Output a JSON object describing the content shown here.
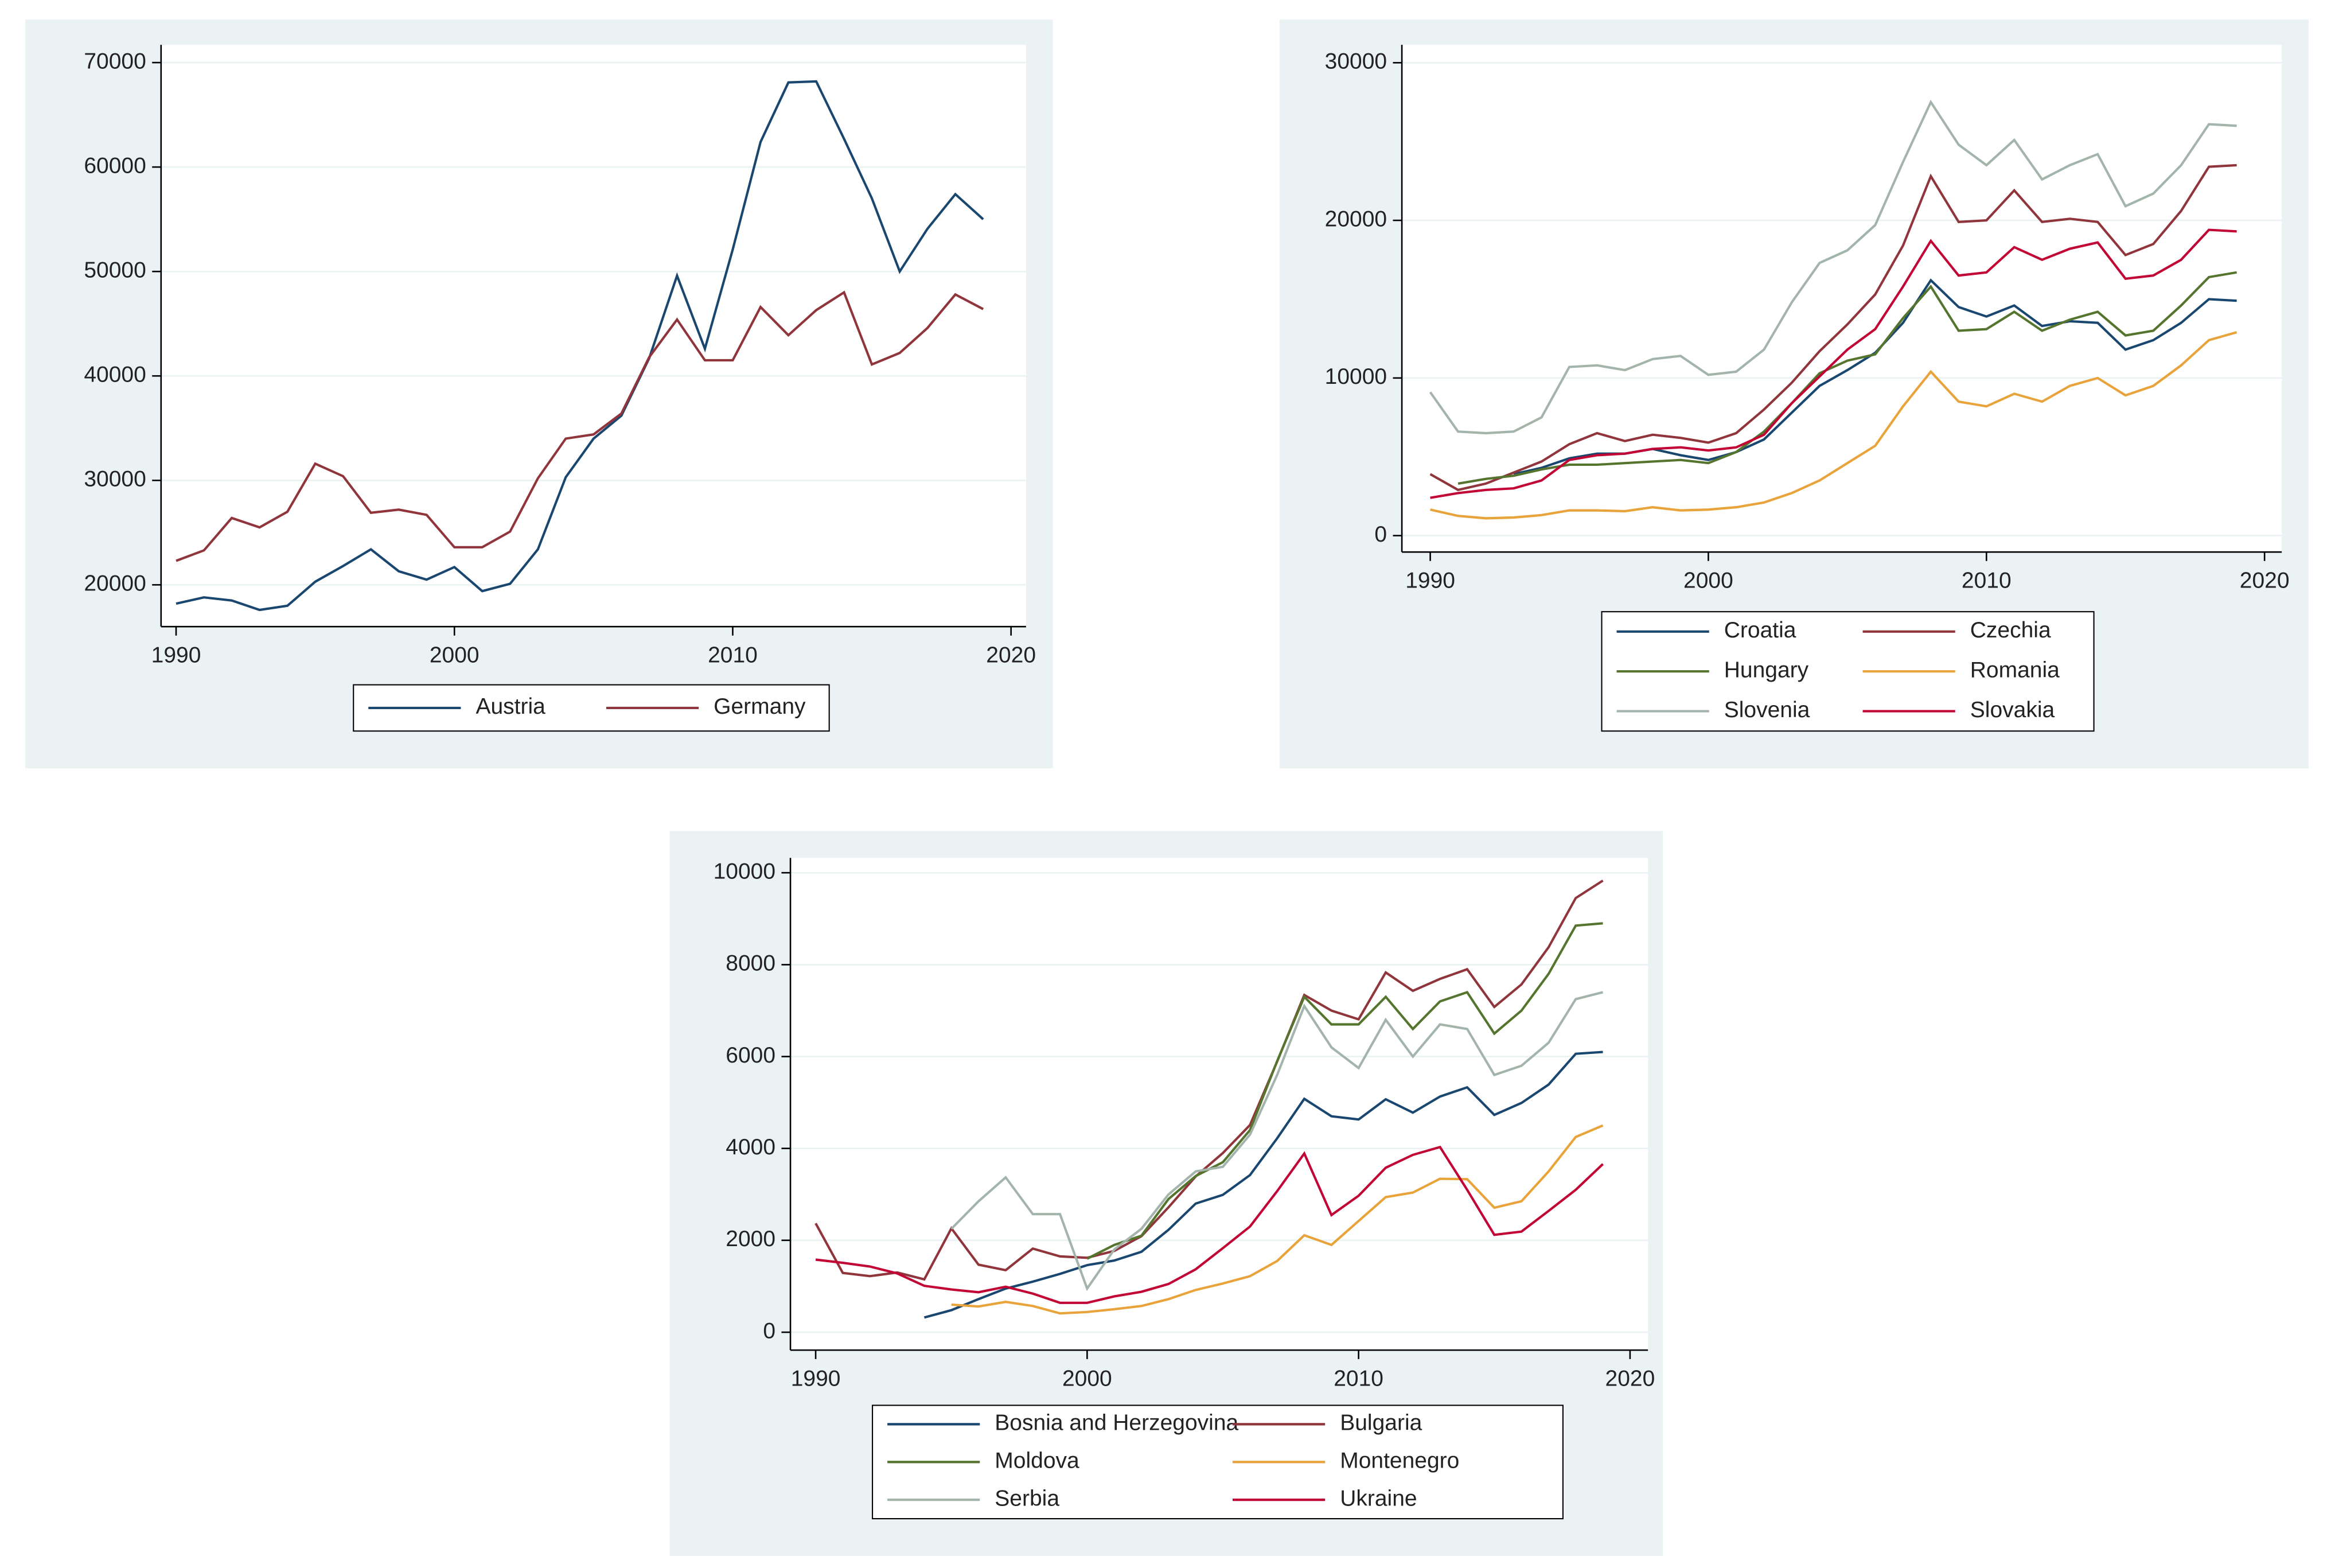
{
  "chart_data": [
    {
      "type": "line",
      "grid": true,
      "x": [
        1990,
        1991,
        1992,
        1993,
        1994,
        1995,
        1996,
        1997,
        1998,
        1999,
        2000,
        2001,
        2002,
        2003,
        2004,
        2005,
        2006,
        2007,
        2008,
        2009,
        2010,
        2011,
        2012,
        2013,
        2014,
        2015,
        2016,
        2017,
        2018,
        2019
      ],
      "xlim": [
        1989.46,
        2020.54
      ],
      "xticks": [
        1990,
        2000,
        2010,
        2020
      ],
      "ylim": [
        16000,
        71700
      ],
      "yticks": [
        20000,
        30000,
        40000,
        50000,
        60000,
        70000
      ],
      "series": [
        {
          "name": "Austria",
          "color": "#1a476f",
          "values": [
            18200,
            18800,
            18500,
            17600,
            18000,
            20300,
            21800,
            23400,
            21300,
            20500,
            21700,
            19400,
            20100,
            23400,
            30300,
            34000,
            36200,
            41700,
            49600,
            42600,
            52100,
            62400,
            68100,
            68200,
            62700,
            57000,
            50000,
            54100,
            57400,
            55000
          ]
        },
        {
          "name": "Germany",
          "color": "#90353b",
          "values": [
            22300,
            23300,
            26400,
            25500,
            27000,
            31600,
            30400,
            26900,
            27200,
            26700,
            23600,
            23600,
            25100,
            30200,
            34000,
            34400,
            36400,
            41800,
            45400,
            41500,
            41500,
            46600,
            43900,
            46300,
            48000,
            41100,
            42200,
            44600,
            47800,
            46400
          ]
        }
      ]
    },
    {
      "type": "line",
      "grid": true,
      "x": [
        1990,
        1991,
        1992,
        1993,
        1994,
        1995,
        1996,
        1997,
        1998,
        1999,
        2000,
        2001,
        2002,
        2003,
        2004,
        2005,
        2006,
        2007,
        2008,
        2009,
        2010,
        2011,
        2012,
        2013,
        2014,
        2015,
        2016,
        2017,
        2018,
        2019
      ],
      "xlim": [
        1988.98,
        2020.62
      ],
      "xticks": [
        1990,
        2000,
        2010,
        2020
      ],
      "ylim": [
        -1041,
        31136
      ],
      "yticks": [
        0,
        10000,
        20000,
        30000
      ],
      "series": [
        {
          "name": "Croatia",
          "color": "#1a476f",
          "values": [
            null,
            null,
            null,
            3900,
            4300,
            4900,
            5200,
            5200,
            5500,
            5100,
            4800,
            5300,
            6100,
            7800,
            9500,
            10500,
            11600,
            13500,
            16200,
            14500,
            13900,
            14600,
            13300,
            13600,
            13500,
            11800,
            12400,
            13500,
            15000,
            14900
          ]
        },
        {
          "name": "Czechia",
          "color": "#90353b",
          "values": [
            3900,
            2900,
            3300,
            4000,
            4700,
            5800,
            6500,
            6000,
            6400,
            6200,
            5900,
            6500,
            8000,
            9700,
            11700,
            13400,
            15300,
            18400,
            22800,
            19900,
            20000,
            21900,
            19900,
            20100,
            19900,
            17800,
            18500,
            20600,
            23400,
            23500
          ]
        },
        {
          "name": "Hungary",
          "color": "#55752f",
          "values": [
            null,
            3300,
            3600,
            3800,
            4200,
            4500,
            4500,
            4600,
            4700,
            4800,
            4600,
            5300,
            6600,
            8400,
            10300,
            11100,
            11500,
            13800,
            15800,
            13000,
            13100,
            14200,
            13000,
            13700,
            14200,
            12700,
            13000,
            14600,
            16400,
            16700
          ]
        },
        {
          "name": "Romania",
          "color": "#e8a33a",
          "values": [
            1650,
            1250,
            1100,
            1150,
            1300,
            1600,
            1600,
            1550,
            1800,
            1600,
            1650,
            1800,
            2100,
            2700,
            3500,
            4600,
            5700,
            8200,
            10400,
            8500,
            8200,
            9000,
            8500,
            9500,
            10000,
            8900,
            9500,
            10800,
            12400,
            12900
          ]
        },
        {
          "name": "Slovenia",
          "color": "#a3b5ab",
          "values": [
            9100,
            6600,
            6500,
            6600,
            7500,
            10700,
            10800,
            10500,
            11200,
            11400,
            10200,
            10400,
            11800,
            14800,
            17300,
            18100,
            19700,
            23700,
            27500,
            24800,
            23500,
            25100,
            22600,
            23500,
            24200,
            20900,
            21700,
            23500,
            26100,
            26000
          ]
        },
        {
          "name": "Slovakia",
          "color": "#c10534",
          "values": [
            2400,
            2700,
            2900,
            3000,
            3500,
            4800,
            5100,
            5200,
            5500,
            5600,
            5400,
            5600,
            6400,
            8400,
            10100,
            11800,
            13100,
            15800,
            18700,
            16500,
            16700,
            18300,
            17500,
            18200,
            18600,
            16300,
            16500,
            17500,
            19400,
            19300
          ]
        }
      ]
    },
    {
      "type": "line",
      "grid": true,
      "x": [
        1990,
        1991,
        1992,
        1993,
        1994,
        1995,
        1996,
        1997,
        1998,
        1999,
        2000,
        2001,
        2002,
        2003,
        2004,
        2005,
        2006,
        2007,
        2008,
        2009,
        2010,
        2011,
        2012,
        2013,
        2014,
        2015,
        2016,
        2017,
        2018,
        2019
      ],
      "xlim": [
        1989.07,
        2020.66
      ],
      "xticks": [
        1990,
        2000,
        2010,
        2020
      ],
      "ylim": [
        -390,
        10325
      ],
      "yticks": [
        0,
        2000,
        4000,
        6000,
        8000,
        10000
      ],
      "series": [
        {
          "name": "Bosnia and Herzegovina",
          "color": "#1a476f",
          "values": [
            null,
            null,
            null,
            null,
            320,
            480,
            720,
            950,
            1100,
            1270,
            1460,
            1560,
            1750,
            2230,
            2800,
            2990,
            3420,
            4220,
            5080,
            4700,
            4630,
            5070,
            4780,
            5130,
            5330,
            4730,
            4990,
            5390,
            6060,
            6100
          ]
        },
        {
          "name": "Bulgaria",
          "color": "#90353b",
          "values": [
            2370,
            1290,
            1220,
            1300,
            1150,
            2260,
            1470,
            1350,
            1820,
            1650,
            1620,
            1770,
            2090,
            2720,
            3390,
            3900,
            4510,
            5890,
            7340,
            7000,
            6810,
            7830,
            7430,
            7690,
            7900,
            7080,
            7570,
            8380,
            9450,
            9830
          ]
        },
        {
          "name": "Moldova",
          "color": "#55752f",
          "values": [
            null,
            null,
            null,
            null,
            null,
            null,
            null,
            null,
            null,
            null,
            1600,
            1900,
            2100,
            2900,
            3400,
            3700,
            4400,
            5900,
            7300,
            6700,
            6700,
            7300,
            6600,
            7200,
            7400,
            6500,
            7000,
            7800,
            8850,
            8900
          ]
        },
        {
          "name": "Montenegro",
          "color": "#e8a33a",
          "values": [
            null,
            null,
            null,
            null,
            null,
            600,
            560,
            660,
            570,
            410,
            440,
            500,
            570,
            720,
            920,
            1060,
            1220,
            1550,
            2110,
            1900,
            2420,
            2940,
            3040,
            3340,
            3330,
            2710,
            2850,
            3500,
            4250,
            4500
          ]
        },
        {
          "name": "Serbia",
          "color": "#a3b5ab",
          "values": [
            null,
            null,
            null,
            null,
            null,
            2250,
            2850,
            3370,
            2570,
            2570,
            950,
            1800,
            2250,
            3000,
            3500,
            3600,
            4300,
            5600,
            7100,
            6200,
            5750,
            6800,
            6000,
            6700,
            6600,
            5600,
            5800,
            6300,
            7250,
            7400
          ]
        },
        {
          "name": "Ukraine",
          "color": "#c10534",
          "values": [
            1580,
            1510,
            1430,
            1280,
            1010,
            930,
            870,
            990,
            840,
            640,
            640,
            780,
            880,
            1050,
            1370,
            1830,
            2300,
            3070,
            3890,
            2550,
            2970,
            3580,
            3860,
            4030,
            3100,
            2120,
            2190,
            2640,
            3100,
            3660
          ]
        }
      ]
    }
  ]
}
